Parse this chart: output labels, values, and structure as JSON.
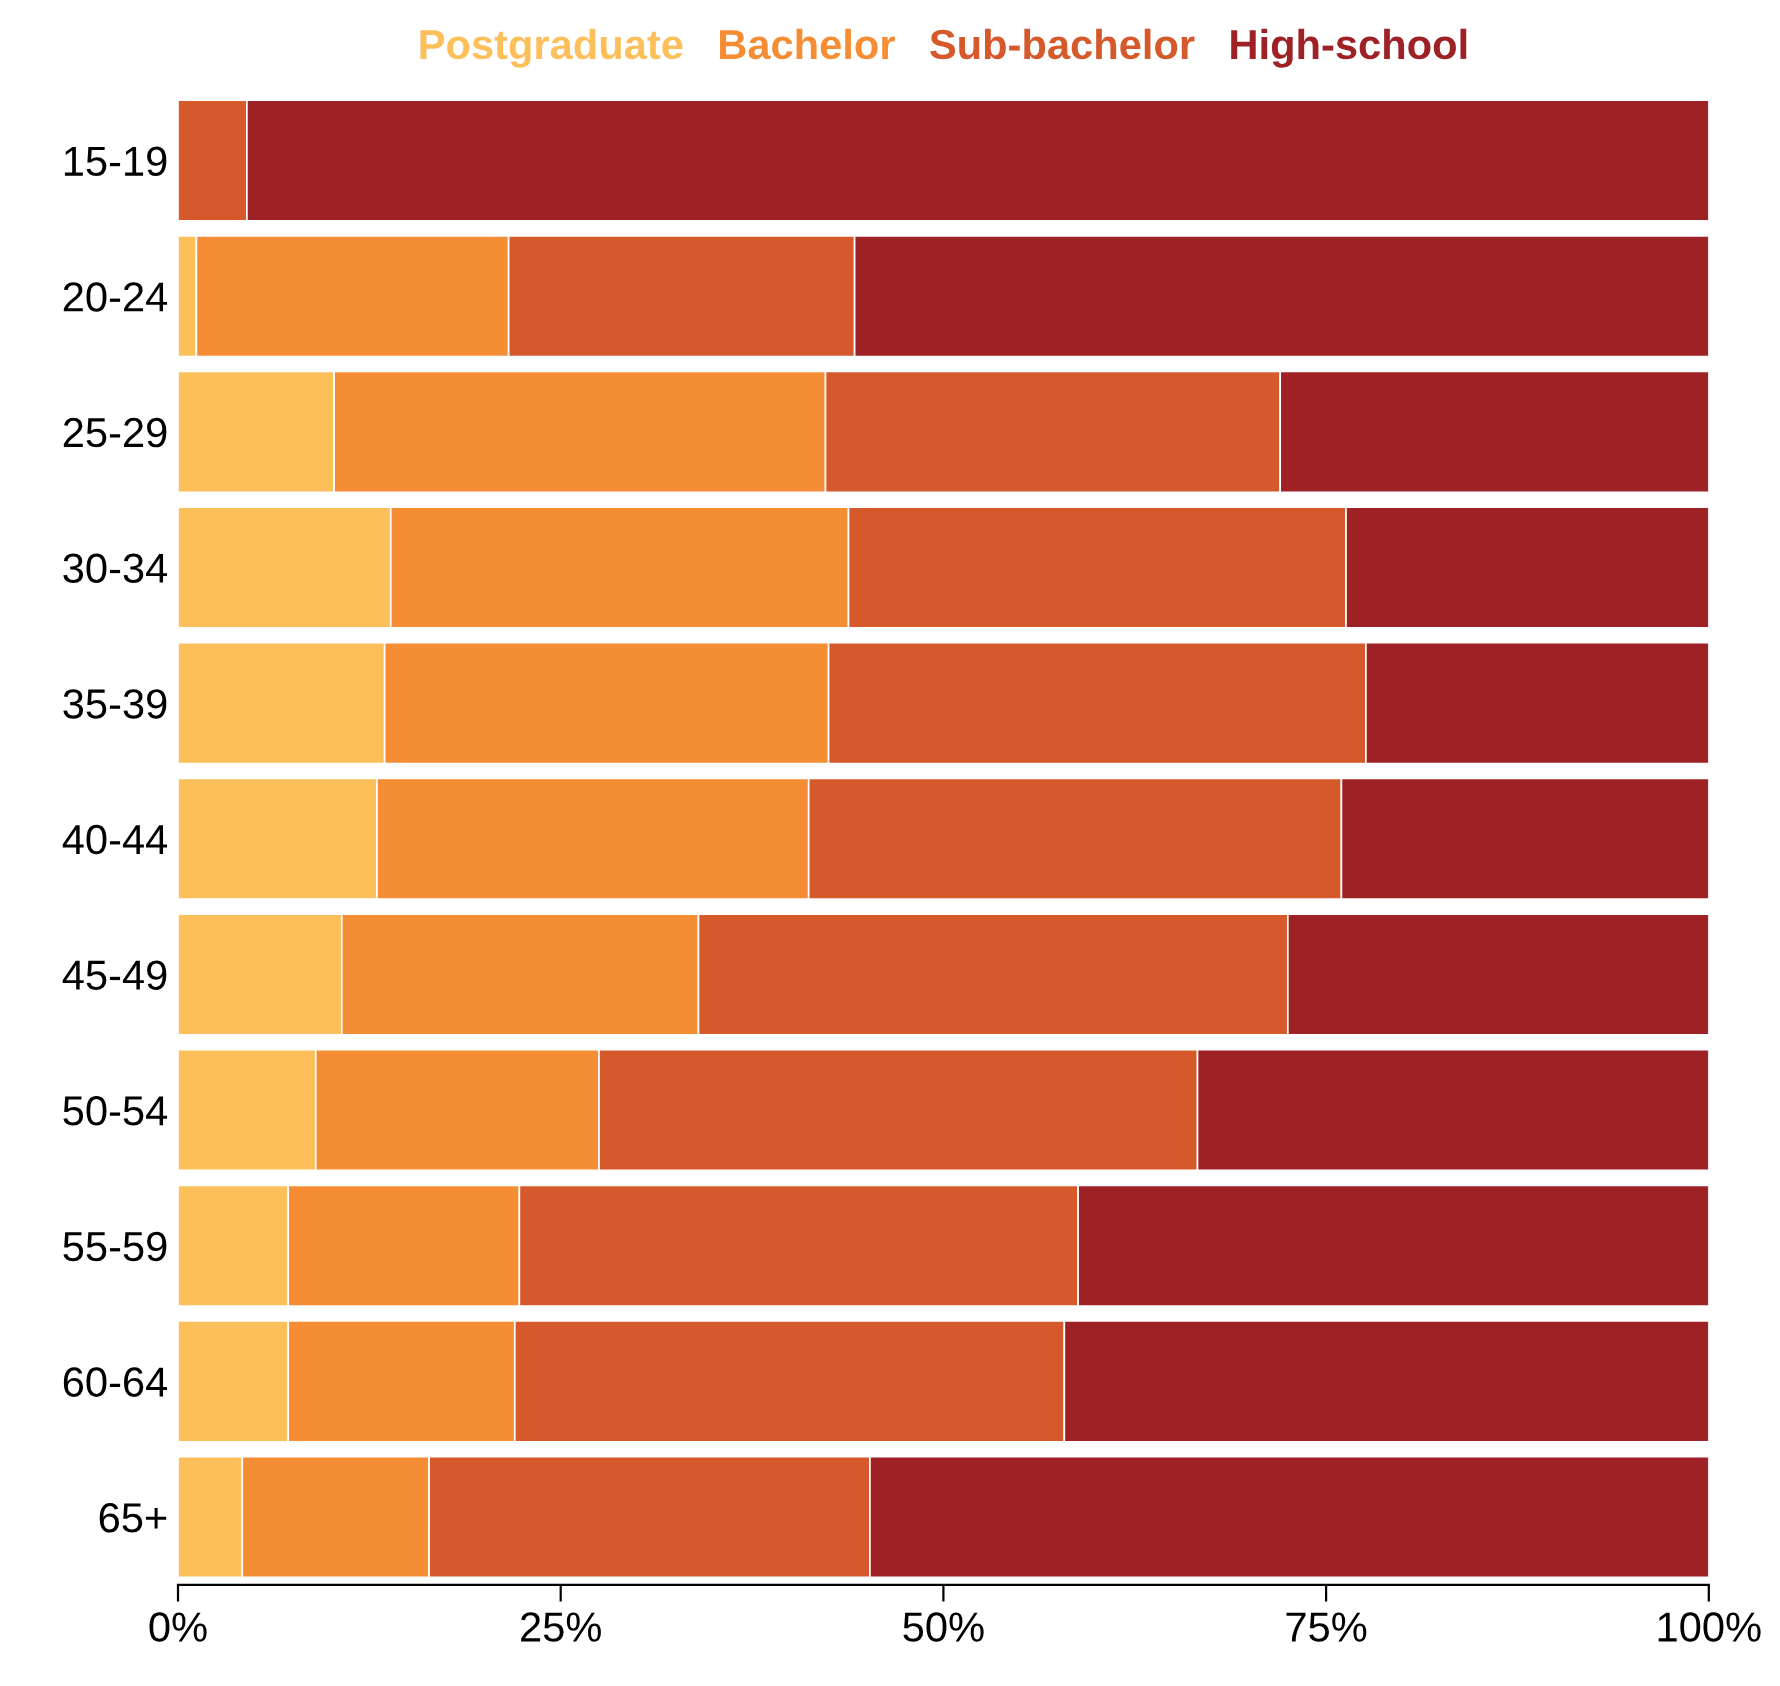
{
  "chart_data": {
    "type": "bar",
    "orientation": "horizontal",
    "stacked": true,
    "categories": [
      "15-19",
      "20-24",
      "25-29",
      "30-34",
      "35-39",
      "40-44",
      "45-49",
      "50-54",
      "55-59",
      "60-64",
      "65+"
    ],
    "series": [
      {
        "name": "Postgraduate",
        "color": "#fdbf5a",
        "values": [
          0,
          1.2,
          10.2,
          13.9,
          13.5,
          13.0,
          10.7,
          9.0,
          7.2,
          7.2,
          4.2
        ]
      },
      {
        "name": "Bachelor",
        "color": "#f58d35",
        "values": [
          0,
          20.4,
          32.1,
          29.9,
          29.0,
          28.2,
          23.3,
          18.5,
          15.1,
          14.8,
          12.2
        ]
      },
      {
        "name": "Sub-bachelor",
        "color": "#d5592b",
        "values": [
          4.5,
          22.6,
          29.7,
          32.5,
          35.1,
          34.8,
          38.5,
          39.1,
          36.5,
          35.9,
          28.8
        ]
      },
      {
        "name": "High-school",
        "color": "#9e2126",
        "values": [
          95.5,
          55.8,
          28.0,
          23.7,
          22.4,
          24.0,
          27.5,
          33.4,
          41.2,
          42.1,
          54.8
        ]
      }
    ],
    "xlim": [
      0,
      100
    ],
    "xticks": [
      {
        "value": 0,
        "label": "0%"
      },
      {
        "value": 25,
        "label": "25%"
      },
      {
        "value": 50,
        "label": "50%"
      },
      {
        "value": 75,
        "label": "75%"
      },
      {
        "value": 100,
        "label": "100%"
      }
    ],
    "legend": "top",
    "grid": false
  }
}
